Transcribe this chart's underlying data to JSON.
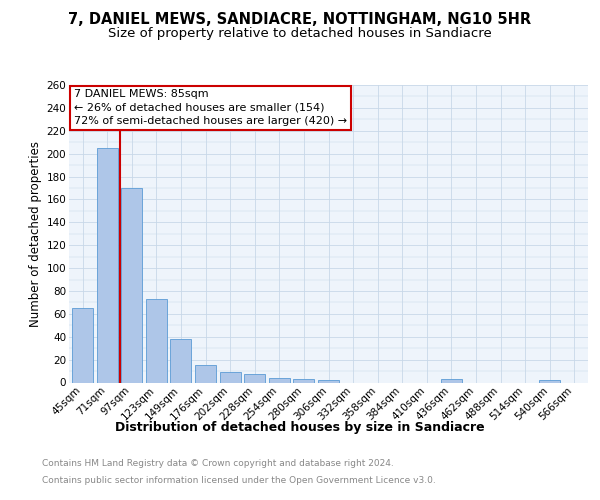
{
  "title": "7, DANIEL MEWS, SANDIACRE, NOTTINGHAM, NG10 5HR",
  "subtitle": "Size of property relative to detached houses in Sandiacre",
  "xlabel": "Distribution of detached houses by size in Sandiacre",
  "ylabel": "Number of detached properties",
  "categories": [
    "45sqm",
    "71sqm",
    "97sqm",
    "123sqm",
    "149sqm",
    "176sqm",
    "202sqm",
    "228sqm",
    "254sqm",
    "280sqm",
    "306sqm",
    "332sqm",
    "358sqm",
    "384sqm",
    "410sqm",
    "436sqm",
    "462sqm",
    "488sqm",
    "514sqm",
    "540sqm",
    "566sqm"
  ],
  "values": [
    65,
    205,
    170,
    73,
    38,
    15,
    9,
    7,
    4,
    3,
    2,
    0,
    0,
    0,
    0,
    3,
    0,
    0,
    0,
    2,
    0
  ],
  "bar_color": "#aec6e8",
  "bar_edge_color": "#5b9bd5",
  "grid_color": "#c8d8e8",
  "background_color": "#eef4fb",
  "vline_x": 1.54,
  "vline_color": "#cc0000",
  "annotation_line1": "7 DANIEL MEWS: 85sqm",
  "annotation_line2": "← 26% of detached houses are smaller (154)",
  "annotation_line3": "72% of semi-detached houses are larger (420) →",
  "annotation_box_color": "#cc0000",
  "ylim": [
    0,
    260
  ],
  "yticks": [
    0,
    20,
    40,
    60,
    80,
    100,
    120,
    140,
    160,
    180,
    200,
    220,
    240,
    260
  ],
  "footer_line1": "Contains HM Land Registry data © Crown copyright and database right 2024.",
  "footer_line2": "Contains public sector information licensed under the Open Government Licence v3.0.",
  "title_fontsize": 10.5,
  "subtitle_fontsize": 9.5,
  "ylabel_fontsize": 8.5,
  "xlabel_fontsize": 9,
  "tick_fontsize": 7.5,
  "annotation_fontsize": 8,
  "footer_fontsize": 6.5
}
